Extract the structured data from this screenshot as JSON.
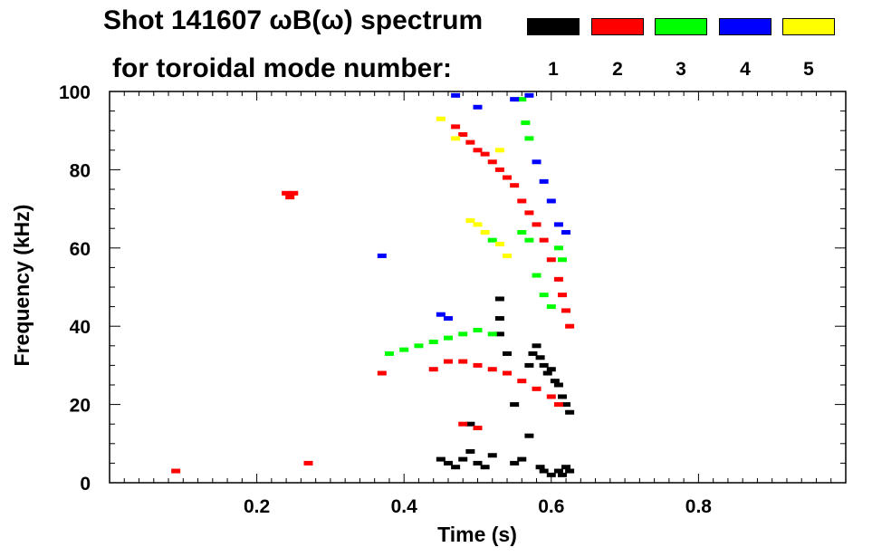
{
  "header": {
    "title_line1": "Shot 141607 ωB(ω) spectrum",
    "title_line2": "for toroidal mode number:"
  },
  "legend": [
    {
      "label": "1",
      "color": "#000000"
    },
    {
      "label": "2",
      "color": "#ff0000"
    },
    {
      "label": "3",
      "color": "#00ff00"
    },
    {
      "label": "4",
      "color": "#0000ff"
    },
    {
      "label": "5",
      "color": "#ffff00"
    }
  ],
  "chart_data": {
    "type": "scatter",
    "title": "Shot 141607 ωB(ω) spectrum for toroidal mode number",
    "xlabel": "Time (s)",
    "ylabel": "Frequency (kHz)",
    "xlim": [
      0.0,
      1.0
    ],
    "ylim": [
      0,
      100
    ],
    "xticks": [
      0.2,
      0.4,
      0.6,
      0.8
    ],
    "xtick_labels": [
      "0.2",
      "0.4",
      "0.6",
      "0.8"
    ],
    "yticks": [
      0,
      20,
      40,
      60,
      80,
      100
    ],
    "ytick_labels": [
      "0",
      "20",
      "40",
      "60",
      "80",
      "100"
    ],
    "series": [
      {
        "name": "n=1",
        "color": "#000000",
        "points": [
          [
            0.45,
            6
          ],
          [
            0.46,
            5
          ],
          [
            0.47,
            4
          ],
          [
            0.48,
            6
          ],
          [
            0.49,
            8
          ],
          [
            0.5,
            5
          ],
          [
            0.51,
            4
          ],
          [
            0.52,
            7
          ],
          [
            0.53,
            47
          ],
          [
            0.53,
            42
          ],
          [
            0.53,
            38
          ],
          [
            0.54,
            33
          ],
          [
            0.55,
            5
          ],
          [
            0.56,
            6
          ],
          [
            0.57,
            30
          ],
          [
            0.575,
            33
          ],
          [
            0.58,
            35
          ],
          [
            0.585,
            32
          ],
          [
            0.59,
            30
          ],
          [
            0.595,
            28
          ],
          [
            0.6,
            29
          ],
          [
            0.605,
            26
          ],
          [
            0.61,
            25
          ],
          [
            0.615,
            22
          ],
          [
            0.62,
            20
          ],
          [
            0.625,
            18
          ],
          [
            0.585,
            4
          ],
          [
            0.59,
            3
          ],
          [
            0.6,
            2
          ],
          [
            0.61,
            3
          ],
          [
            0.615,
            2
          ],
          [
            0.62,
            4
          ],
          [
            0.625,
            3
          ],
          [
            0.49,
            15
          ],
          [
            0.55,
            20
          ],
          [
            0.57,
            12
          ]
        ]
      },
      {
        "name": "n=2",
        "color": "#ff0000",
        "points": [
          [
            0.24,
            74
          ],
          [
            0.245,
            73
          ],
          [
            0.25,
            74
          ],
          [
            0.37,
            28
          ],
          [
            0.09,
            3
          ],
          [
            0.27,
            5
          ],
          [
            0.47,
            91
          ],
          [
            0.48,
            89
          ],
          [
            0.49,
            87
          ],
          [
            0.5,
            85
          ],
          [
            0.51,
            84
          ],
          [
            0.52,
            82
          ],
          [
            0.53,
            80
          ],
          [
            0.54,
            78
          ],
          [
            0.55,
            76
          ],
          [
            0.56,
            72
          ],
          [
            0.57,
            69
          ],
          [
            0.58,
            66
          ],
          [
            0.59,
            62
          ],
          [
            0.6,
            57
          ],
          [
            0.61,
            52
          ],
          [
            0.615,
            48
          ],
          [
            0.62,
            44
          ],
          [
            0.625,
            40
          ],
          [
            0.44,
            29
          ],
          [
            0.46,
            31
          ],
          [
            0.48,
            31
          ],
          [
            0.5,
            30
          ],
          [
            0.52,
            29
          ],
          [
            0.54,
            28
          ],
          [
            0.56,
            26
          ],
          [
            0.58,
            24
          ],
          [
            0.6,
            22
          ],
          [
            0.61,
            20
          ],
          [
            0.48,
            15
          ],
          [
            0.5,
            14
          ]
        ]
      },
      {
        "name": "n=3",
        "color": "#00ff00",
        "points": [
          [
            0.38,
            33
          ],
          [
            0.4,
            34
          ],
          [
            0.42,
            35
          ],
          [
            0.44,
            36
          ],
          [
            0.46,
            37
          ],
          [
            0.48,
            38
          ],
          [
            0.5,
            39
          ],
          [
            0.52,
            38
          ],
          [
            0.56,
            98
          ],
          [
            0.565,
            92
          ],
          [
            0.57,
            88
          ],
          [
            0.58,
            53
          ],
          [
            0.59,
            48
          ],
          [
            0.6,
            45
          ],
          [
            0.61,
            60
          ],
          [
            0.615,
            57
          ],
          [
            0.52,
            62
          ],
          [
            0.56,
            64
          ],
          [
            0.57,
            62
          ]
        ]
      },
      {
        "name": "n=4",
        "color": "#0000ff",
        "points": [
          [
            0.37,
            58
          ],
          [
            0.45,
            43
          ],
          [
            0.46,
            42
          ],
          [
            0.47,
            99
          ],
          [
            0.5,
            96
          ],
          [
            0.55,
            98
          ],
          [
            0.57,
            99
          ],
          [
            0.58,
            82
          ],
          [
            0.59,
            77
          ],
          [
            0.6,
            72
          ],
          [
            0.61,
            66
          ],
          [
            0.62,
            64
          ]
        ]
      },
      {
        "name": "n=5",
        "color": "#ffff00",
        "points": [
          [
            0.45,
            93
          ],
          [
            0.47,
            88
          ],
          [
            0.49,
            67
          ],
          [
            0.5,
            66
          ],
          [
            0.51,
            64
          ],
          [
            0.53,
            61
          ],
          [
            0.54,
            58
          ],
          [
            0.53,
            85
          ]
        ]
      }
    ]
  }
}
